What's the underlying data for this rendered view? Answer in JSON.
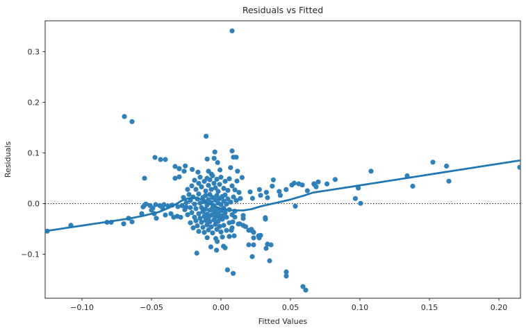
{
  "figure": {
    "title": "Residuals vs Fitted",
    "xlabel": "Fitted Values",
    "ylabel": "Residuals"
  },
  "chart_data": {
    "type": "scatter",
    "title": "Residuals vs Fitted",
    "xlabel": "Fitted Values",
    "ylabel": "Residuals",
    "grid": false,
    "legend": "none",
    "xlim": [
      -0.1265,
      0.2155
    ],
    "ylim": [
      -0.187,
      0.361
    ],
    "x_ticks": {
      "values": [
        -0.1,
        -0.05,
        0.0,
        0.05,
        0.1,
        0.15,
        0.2
      ],
      "labels": [
        "−0.10",
        "−0.05",
        "0.00",
        "0.05",
        "0.10",
        "0.15",
        "0.20"
      ]
    },
    "y_ticks": {
      "values": [
        0.3,
        0.2,
        0.1,
        0.0,
        -0.1
      ],
      "labels": [
        "0.3",
        "0.2",
        "0.1",
        "0.0",
        "−0.1"
      ]
    },
    "zero_line": {
      "y": 0.0,
      "style": "dotted",
      "color": "#111111"
    },
    "colors": {
      "marker": "#2f7fb8",
      "marker_opacity": 0.82,
      "line": "#1f77b4",
      "spine": "#262626",
      "text": "#262626",
      "background": "#ffffff"
    },
    "marker_radius": 3.6,
    "line_width": 2.8,
    "lowess_line": [
      [
        -0.1265,
        -0.0545
      ],
      [
        -0.11,
        -0.0475
      ],
      [
        -0.095,
        -0.0415
      ],
      [
        -0.08,
        -0.0355
      ],
      [
        -0.065,
        -0.029
      ],
      [
        -0.055,
        -0.0235
      ],
      [
        -0.045,
        -0.017
      ],
      [
        -0.038,
        -0.009
      ],
      [
        -0.033,
        -0.002
      ],
      [
        -0.028,
        0.006
      ],
      [
        -0.024,
        0.01
      ],
      [
        -0.02,
        0.0115
      ],
      [
        -0.016,
        0.01
      ],
      [
        -0.012,
        0.005
      ],
      [
        -0.008,
        -0.001
      ],
      [
        -0.004,
        -0.006
      ],
      [
        0.0,
        -0.01
      ],
      [
        0.005,
        -0.0125
      ],
      [
        0.01,
        -0.0135
      ],
      [
        0.016,
        -0.0135
      ],
      [
        0.022,
        -0.011
      ],
      [
        0.028,
        -0.006
      ],
      [
        0.034,
        -0.002
      ],
      [
        0.04,
        0.0015
      ],
      [
        0.05,
        0.008
      ],
      [
        0.06,
        0.016
      ],
      [
        0.066,
        0.0215
      ],
      [
        0.09,
        0.0317
      ],
      [
        0.11,
        0.0403
      ],
      [
        0.13,
        0.0488
      ],
      [
        0.15,
        0.0574
      ],
      [
        0.17,
        0.0659
      ],
      [
        0.19,
        0.0745
      ],
      [
        0.2155,
        0.0853
      ]
    ],
    "points": [
      [
        0.008,
        0.341
      ],
      [
        -0.0695,
        0.172
      ],
      [
        -0.064,
        0.162
      ],
      [
        -0.0107,
        0.133
      ],
      [
        -0.0044,
        0.102
      ],
      [
        0.008,
        0.104
      ],
      [
        0.009,
        0.0915
      ],
      [
        -0.0099,
        0.088
      ],
      [
        -0.0049,
        0.0893
      ],
      [
        -0.0024,
        0.081
      ],
      [
        -0.0475,
        0.0911
      ],
      [
        -0.0435,
        0.087
      ],
      [
        -0.04,
        0.087
      ],
      [
        -0.033,
        0.0733
      ],
      [
        -0.03,
        0.069
      ],
      [
        -0.033,
        0.05
      ],
      [
        -0.03,
        0.0527
      ],
      [
        -0.055,
        0.05
      ],
      [
        -0.0257,
        0.0743
      ],
      [
        -0.03,
        0.0688
      ],
      [
        -0.0265,
        0.064
      ],
      [
        -0.0207,
        0.0674
      ],
      [
        -0.0165,
        0.062
      ],
      [
        -0.009,
        0.064
      ],
      [
        -0.0069,
        0.0582
      ],
      [
        -0.0007,
        0.0664
      ],
      [
        0.0069,
        0.071
      ],
      [
        0.0119,
        0.064
      ],
      [
        0.0115,
        0.0445
      ],
      [
        0.011,
        0.0915
      ],
      [
        0.0152,
        0.0514
      ],
      [
        0.021,
        0.023
      ],
      [
        0.0227,
        0.0103
      ],
      [
        0.0277,
        0.0277
      ],
      [
        0.0285,
        0.0162
      ],
      [
        0.0327,
        0.0222
      ],
      [
        0.0335,
        0.0116
      ],
      [
        0.0369,
        0.0345
      ],
      [
        0.0377,
        0.0468
      ],
      [
        0.0419,
        0.024
      ],
      [
        0.0427,
        0.0162
      ],
      [
        0.0469,
        0.0277
      ],
      [
        0.051,
        0.0367
      ],
      [
        0.0527,
        0.0404
      ],
      [
        0.056,
        0.039
      ],
      [
        0.0585,
        0.0367
      ],
      [
        0.0622,
        0.0253
      ],
      [
        0.0669,
        0.039
      ],
      [
        0.0685,
        0.0332
      ],
      [
        0.07,
        0.0427
      ],
      [
        0.0673,
        0.0374
      ],
      [
        0.0763,
        0.0388
      ],
      [
        0.0822,
        0.0475
      ],
      [
        0.108,
        0.064
      ],
      [
        0.0988,
        0.0306
      ],
      [
        0.0967,
        0.01
      ],
      [
        0.1005,
        0.0004
      ],
      [
        0.134,
        0.0548
      ],
      [
        0.138,
        0.0342
      ],
      [
        0.1525,
        0.0818
      ],
      [
        0.1623,
        0.074
      ],
      [
        0.164,
        0.0442
      ],
      [
        0.215,
        0.0716
      ],
      [
        0.0535,
        -0.0052
      ],
      [
        0.0319,
        -0.028
      ],
      [
        0.016,
        -0.0236
      ],
      [
        0.0177,
        -0.0455
      ],
      [
        0.0219,
        -0.051
      ],
      [
        0.0235,
        -0.0568
      ],
      [
        0.0285,
        -0.0627
      ],
      [
        0.0135,
        -0.04
      ],
      [
        0.01,
        -0.0267
      ],
      [
        0.016,
        -0.0295
      ],
      [
        0.0085,
        -0.0363
      ],
      [
        0.0125,
        -0.0404
      ],
      [
        0.016,
        -0.0432
      ],
      [
        0.032,
        -0.0308
      ],
      [
        0.02,
        -0.0527
      ],
      [
        0.0225,
        -0.0541
      ],
      [
        0.0075,
        -0.0527
      ],
      [
        0.0095,
        -0.0637
      ],
      [
        0.0235,
        -0.0678
      ],
      [
        0.027,
        -0.0637
      ],
      [
        0.0275,
        -0.0678
      ],
      [
        0.02,
        -0.0815
      ],
      [
        0.0235,
        -0.0815
      ],
      [
        0.0335,
        -0.08
      ],
      [
        0.036,
        -0.0815
      ],
      [
        0.0325,
        -0.0884
      ],
      [
        0.0225,
        -0.1048
      ],
      [
        0.035,
        -0.113
      ],
      [
        0.047,
        -0.135
      ],
      [
        0.047,
        -0.143
      ],
      [
        0.059,
        -0.164
      ],
      [
        0.061,
        -0.171
      ],
      [
        -0.0099,
        -0.0674
      ],
      [
        -0.0037,
        -0.069
      ],
      [
        -0.0027,
        -0.075
      ],
      [
        0.001,
        -0.066
      ],
      [
        0.006,
        -0.065
      ],
      [
        -0.0073,
        -0.0856
      ],
      [
        -0.0032,
        -0.092
      ],
      [
        0.0018,
        -0.0842
      ],
      [
        0.003,
        -0.0874
      ],
      [
        -0.0174,
        -0.098
      ],
      [
        0.0047,
        -0.131
      ],
      [
        0.0088,
        -0.138
      ],
      [
        -0.125,
        -0.0545
      ],
      [
        -0.108,
        -0.043
      ],
      [
        -0.082,
        -0.037
      ],
      [
        -0.079,
        -0.037
      ],
      [
        -0.07,
        -0.04
      ],
      [
        -0.0665,
        -0.029
      ],
      [
        -0.064,
        -0.036
      ],
      [
        -0.057,
        -0.02
      ],
      [
        -0.056,
        -0.0066
      ],
      [
        -0.05,
        -0.013
      ],
      [
        -0.049,
        -0.009
      ],
      [
        -0.048,
        -0.02
      ],
      [
        -0.0465,
        -0.029
      ],
      [
        -0.042,
        -0.009
      ],
      [
        -0.04,
        -0.0226
      ],
      [
        -0.036,
        -0.02
      ],
      [
        -0.034,
        -0.027
      ],
      [
        -0.0315,
        -0.025
      ],
      [
        -0.029,
        -0.027
      ],
      [
        -0.055,
        -0.003
      ],
      [
        -0.054,
        -0.001
      ],
      [
        -0.051,
        -0.004
      ],
      [
        -0.047,
        -0.002
      ],
      [
        -0.044,
        -0.004
      ],
      [
        -0.041,
        -0.002
      ],
      [
        -0.038,
        -0.005
      ],
      [
        -0.035,
        -0.003
      ],
      [
        -0.031,
        -0.006
      ],
      [
        -0.028,
        -0.004
      ],
      [
        -0.025,
        -0.007
      ],
      [
        -0.024,
        0.028
      ],
      [
        -0.021,
        0.035
      ],
      [
        -0.019,
        0.046
      ],
      [
        -0.018,
        0.028
      ],
      [
        -0.016,
        0.04
      ],
      [
        -0.015,
        0.052
      ],
      [
        -0.014,
        0.033
      ],
      [
        -0.012,
        0.044
      ],
      [
        -0.011,
        0.025
      ],
      [
        -0.01,
        0.05
      ],
      [
        -0.009,
        0.036
      ],
      [
        -0.008,
        0.047
      ],
      [
        -0.007,
        0.028
      ],
      [
        -0.006,
        0.055
      ],
      [
        -0.005,
        0.04
      ],
      [
        -0.004,
        0.031
      ],
      [
        -0.003,
        0.048
      ],
      [
        -0.002,
        0.024
      ],
      [
        -0.001,
        0.038
      ],
      [
        0.0,
        0.052
      ],
      [
        0.002,
        0.03
      ],
      [
        0.003,
        0.044
      ],
      [
        0.005,
        0.026
      ],
      [
        0.006,
        0.049
      ],
      [
        0.008,
        0.035
      ],
      [
        0.01,
        0.027
      ],
      [
        0.013,
        0.022
      ],
      [
        -0.027,
        0.012
      ],
      [
        -0.025,
        0.002
      ],
      [
        -0.023,
        0.018
      ],
      [
        -0.022,
        0.006
      ],
      [
        -0.02,
        0.013
      ],
      [
        -0.019,
        -0.001
      ],
      [
        -0.017,
        0.009
      ],
      [
        -0.016,
        0.019
      ],
      [
        -0.015,
        0.001
      ],
      [
        -0.013,
        0.012
      ],
      [
        -0.012,
        0.004
      ],
      [
        -0.011,
        0.016
      ],
      [
        -0.01,
        -0.003
      ],
      [
        -0.009,
        0.008
      ],
      [
        -0.008,
        0.018
      ],
      [
        -0.007,
        0.002
      ],
      [
        -0.006,
        0.012
      ],
      [
        -0.005,
        -0.004
      ],
      [
        -0.004,
        0.007
      ],
      [
        -0.003,
        0.016
      ],
      [
        -0.002,
        0.001
      ],
      [
        -0.001,
        0.01
      ],
      [
        0.0,
        -0.002
      ],
      [
        0.001,
        0.014
      ],
      [
        0.002,
        0.005
      ],
      [
        0.003,
        0.017
      ],
      [
        0.004,
        -0.001
      ],
      [
        0.005,
        0.009
      ],
      [
        0.007,
        0.003
      ],
      [
        0.009,
        0.013
      ],
      [
        0.011,
        0.006
      ],
      [
        0.014,
        0.01
      ],
      [
        -0.026,
        -0.012
      ],
      [
        -0.024,
        -0.022
      ],
      [
        -0.022,
        -0.008
      ],
      [
        -0.021,
        -0.018
      ],
      [
        -0.019,
        -0.027
      ],
      [
        -0.018,
        -0.01
      ],
      [
        -0.016,
        -0.02
      ],
      [
        -0.015,
        -0.029
      ],
      [
        -0.014,
        -0.008
      ],
      [
        -0.013,
        -0.016
      ],
      [
        -0.012,
        -0.025
      ],
      [
        -0.011,
        -0.011
      ],
      [
        -0.01,
        -0.021
      ],
      [
        -0.009,
        -0.029
      ],
      [
        -0.008,
        -0.013
      ],
      [
        -0.007,
        -0.023
      ],
      [
        -0.006,
        -0.008
      ],
      [
        -0.005,
        -0.017
      ],
      [
        -0.004,
        -0.026
      ],
      [
        -0.003,
        -0.011
      ],
      [
        -0.002,
        -0.02
      ],
      [
        -0.001,
        -0.028
      ],
      [
        0.0,
        -0.014
      ],
      [
        0.001,
        -0.024
      ],
      [
        0.002,
        -0.009
      ],
      [
        0.003,
        -0.018
      ],
      [
        0.004,
        -0.027
      ],
      [
        0.006,
        -0.012
      ],
      [
        0.008,
        -0.022
      ],
      [
        0.01,
        -0.015
      ],
      [
        -0.022,
        -0.038
      ],
      [
        -0.02,
        -0.048
      ],
      [
        -0.018,
        -0.034
      ],
      [
        -0.017,
        -0.044
      ],
      [
        -0.016,
        -0.055
      ],
      [
        -0.014,
        -0.037
      ],
      [
        -0.013,
        -0.047
      ],
      [
        -0.012,
        -0.057
      ],
      [
        -0.011,
        -0.033
      ],
      [
        -0.01,
        -0.042
      ],
      [
        -0.009,
        -0.052
      ],
      [
        -0.008,
        -0.036
      ],
      [
        -0.007,
        -0.046
      ],
      [
        -0.006,
        -0.058
      ],
      [
        -0.005,
        -0.032
      ],
      [
        -0.004,
        -0.041
      ],
      [
        -0.003,
        -0.051
      ],
      [
        -0.002,
        -0.035
      ],
      [
        -0.001,
        -0.045
      ],
      [
        0.0,
        -0.056
      ],
      [
        0.001,
        -0.031
      ],
      [
        0.002,
        -0.043
      ],
      [
        0.004,
        -0.053
      ],
      [
        0.006,
        -0.038
      ],
      [
        0.008,
        -0.048
      ]
    ]
  },
  "layout_hints": {
    "legend_position": "none",
    "zero_reference_line": "dotted horizontal at y = 0.0"
  }
}
